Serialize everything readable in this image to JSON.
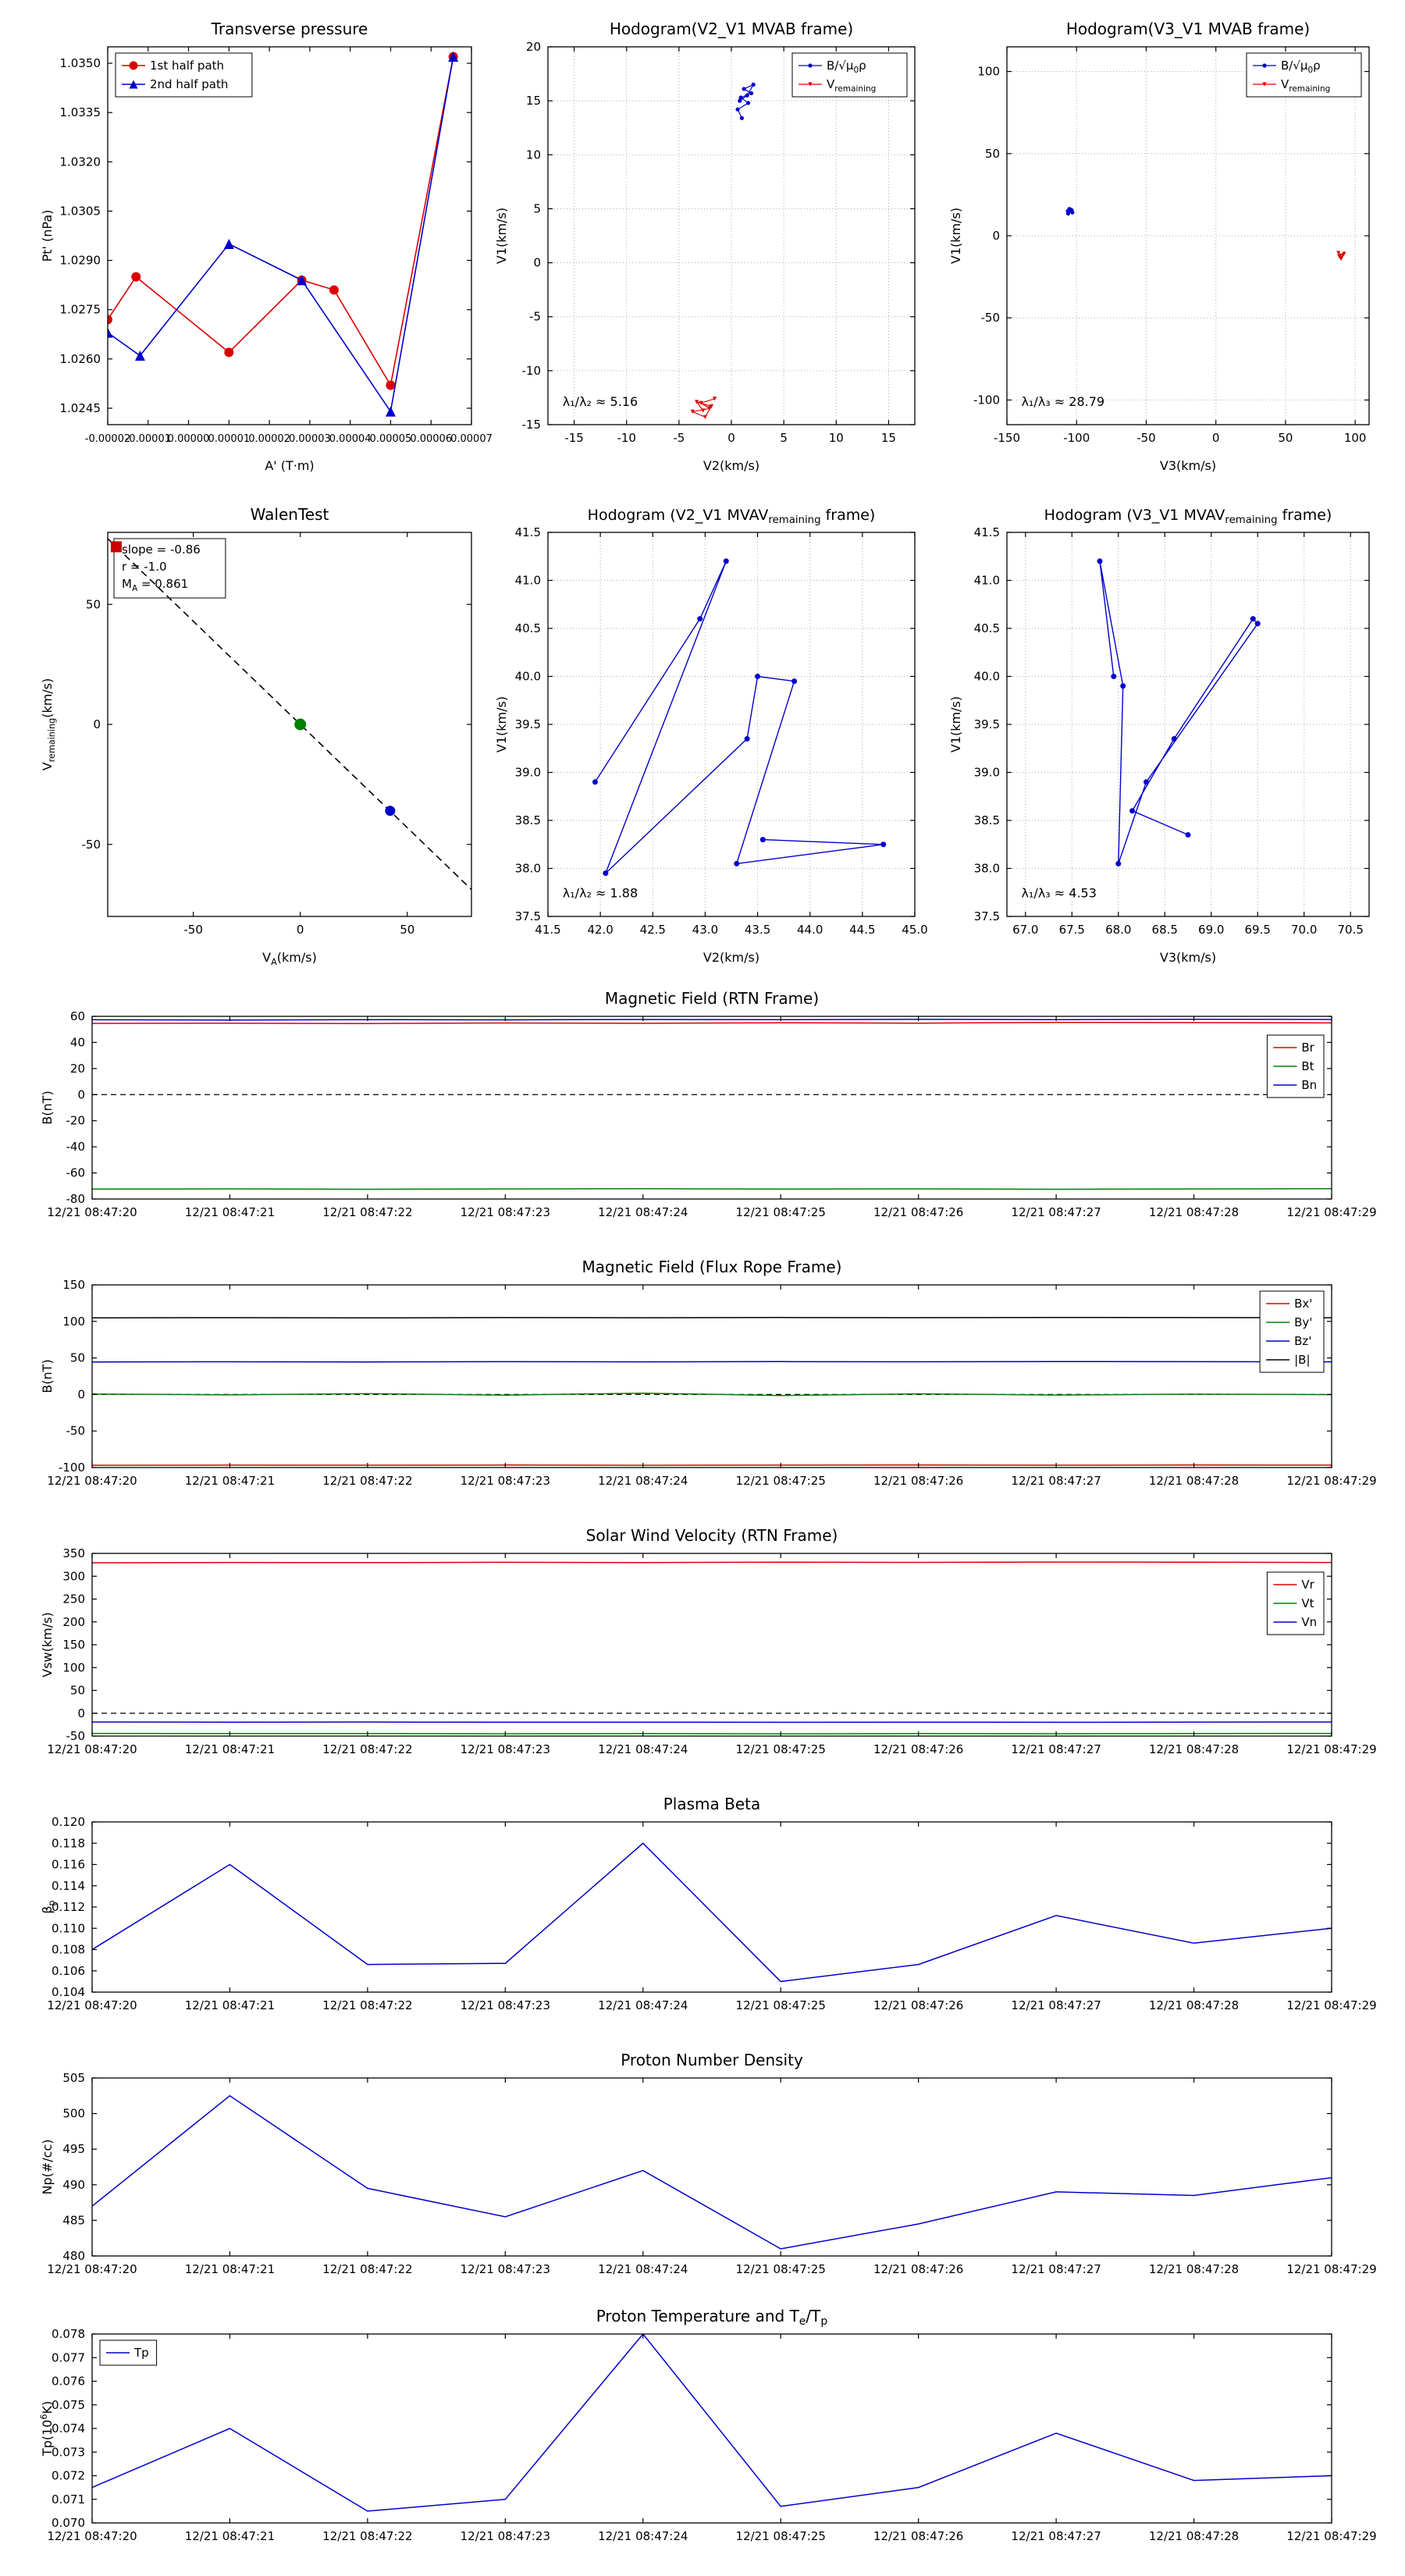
{
  "figure": {
    "background": "#ffffff"
  },
  "time_labels": [
    "12/21 08:47:20",
    "12/21 08:47:21",
    "12/21 08:47:22",
    "12/21 08:47:23",
    "12/21 08:47:24",
    "12/21 08:47:25",
    "12/21 08:47:26",
    "12/21 08:47:27",
    "12/21 08:47:28",
    "12/21 08:47:29"
  ],
  "chart_data": [
    {
      "id": "pt",
      "type": "line",
      "title": "Transverse pressure",
      "xlabel": "A' (T·m)",
      "ylabel": "Pt' (nPa)",
      "xlim": [
        -2e-05,
        7e-05
      ],
      "ylim": [
        1.024,
        1.0355
      ],
      "xtickfs": 13,
      "xticks": {
        "values": [
          -2e-05,
          -1e-05,
          0,
          1e-05,
          2e-05,
          3e-05,
          4e-05,
          5e-05,
          6e-05,
          7e-05
        ],
        "labels": [
          "-0.00002",
          "-0.00001",
          "0.00000",
          "0.00001",
          "0.00002",
          "0.00003",
          "0.00004",
          "0.00005",
          "0.00006",
          "0.00007"
        ]
      },
      "yticks": {
        "values": [
          1.0245,
          1.026,
          1.0275,
          1.029,
          1.0305,
          1.032,
          1.0335,
          1.035
        ],
        "labels": [
          "1.0245",
          "1.0260",
          "1.0275",
          "1.0290",
          "1.0305",
          "1.0320",
          "1.0335",
          "1.0350"
        ]
      },
      "legend": {
        "pos": "upper left"
      },
      "series": [
        {
          "label": "1st half path",
          "color": "#dd0000",
          "marker": "circle",
          "msize": 6,
          "width": 1.6,
          "x": [
            -2e-05,
            -1.3e-05,
            1e-05,
            2.8e-05,
            3.6e-05,
            5e-05,
            6.55e-05
          ],
          "y": [
            1.0272,
            1.0285,
            1.0262,
            1.0284,
            1.0281,
            1.0252,
            1.0352
          ]
        },
        {
          "label": "2nd half path",
          "color": "#0000cc",
          "marker": "triangle",
          "msize": 6.5,
          "width": 1.6,
          "x": [
            -2e-05,
            -1.2e-05,
            1e-05,
            2.8e-05,
            5e-05,
            6.55e-05
          ],
          "y": [
            1.0268,
            1.0261,
            1.0295,
            1.0284,
            1.0244,
            1.0352
          ]
        }
      ]
    },
    {
      "id": "hod1",
      "type": "line",
      "title": "Hodogram(V2_V1 MVAB frame)",
      "xlabel": "V2(km/s)",
      "ylabel": "V1(km/s)",
      "xlim": [
        -17.5,
        17.5
      ],
      "ylim": [
        -15,
        20
      ],
      "grid": true,
      "xticks": {
        "values": [
          -15,
          -10,
          -5,
          0,
          5,
          10,
          15
        ],
        "labels": [
          "-15",
          "-10",
          "-5",
          "0",
          "5",
          "10",
          "15"
        ]
      },
      "yticks": {
        "values": [
          -15,
          -10,
          -5,
          0,
          5,
          10,
          15,
          20
        ],
        "labels": [
          "-15",
          "-10",
          "-5",
          "0",
          "5",
          "10",
          "15",
          "20"
        ]
      },
      "legend": {
        "pos": "upper right"
      },
      "annotations": [
        {
          "text": "λ₁/λ₂ ≈ 5.16",
          "fx": 0.04,
          "fy": 0.05
        }
      ],
      "series": [
        {
          "label": "B/√μ_{0}ρ",
          "color": "#0000cc",
          "marker": "circle",
          "msize": 2.6,
          "width": 1.2,
          "x": [
            1.0,
            0.6,
            1.6,
            0.9,
            1.9,
            1.2,
            2.1,
            1.5,
            0.8
          ],
          "y": [
            13.4,
            14.2,
            14.8,
            15.3,
            15.7,
            16.1,
            16.5,
            15.5,
            15.0
          ]
        },
        {
          "label": "V_{remaining}",
          "color": "#dd0000",
          "marker": "triangle-down",
          "msize": 2.6,
          "width": 1.2,
          "x": [
            -1.6,
            -2.9,
            -2.1,
            -3.7,
            -2.5,
            -1.9,
            -3.3,
            -2.7
          ],
          "y": [
            -12.6,
            -13.0,
            -13.5,
            -13.8,
            -14.3,
            -13.3,
            -12.9,
            -13.7
          ]
        }
      ]
    },
    {
      "id": "hod2",
      "type": "line",
      "title": "Hodogram(V3_V1 MVAB frame)",
      "xlabel": "V3(km/s)",
      "ylabel": "V1(km/s)",
      "xlim": [
        -150,
        110
      ],
      "ylim": [
        -115,
        115
      ],
      "grid": true,
      "xticks": {
        "values": [
          -150,
          -100,
          -50,
          0,
          50,
          100
        ],
        "labels": [
          "-150",
          "-100",
          "-50",
          "0",
          "50",
          "100"
        ]
      },
      "yticks": {
        "values": [
          -100,
          -50,
          0,
          50,
          100
        ],
        "labels": [
          "-100",
          "-50",
          "0",
          "50",
          "100"
        ]
      },
      "legend": {
        "pos": "upper right"
      },
      "annotations": [
        {
          "text": "λ₁/λ₃ ≈ 28.79",
          "fx": 0.04,
          "fy": 0.05
        }
      ],
      "series": [
        {
          "label": "B/√μ_{0}ρ",
          "color": "#0000cc",
          "marker": "circle",
          "msize": 2.6,
          "width": 1.2,
          "x": [
            -106,
            -103.5,
            -105.2,
            -103,
            -106.3,
            -104.2
          ],
          "y": [
            13.5,
            15.5,
            16.3,
            14.2,
            15.0,
            16.0
          ]
        },
        {
          "label": "V_{remaining}",
          "color": "#dd0000",
          "marker": "triangle-down",
          "msize": 2.6,
          "width": 1.2,
          "x": [
            88,
            91,
            89.5,
            92,
            90,
            88.6
          ],
          "y": [
            -10.5,
            -12.0,
            -13.5,
            -11.0,
            -14.0,
            -12.6
          ]
        }
      ]
    },
    {
      "id": "walen",
      "type": "scatter",
      "title": "WalenTest",
      "xlabel": "V_{A}(km/s)",
      "ylabel": "V_{remaining}(km/s)",
      "xlim": [
        -90,
        80
      ],
      "ylim": [
        -80,
        80
      ],
      "xticks": {
        "values": [
          -50,
          0,
          50
        ],
        "labels": [
          "-50",
          "0",
          "50"
        ]
      },
      "yticks": {
        "values": [
          -50,
          0,
          50
        ],
        "labels": [
          "-50",
          "0",
          "50"
        ]
      },
      "textbox": {
        "pos": "upper left",
        "lines": [
          "slope = -0.86",
          "r = -1.0",
          "M_{A} = 0.861"
        ]
      },
      "series": [
        {
          "color": "#000000",
          "dash": true,
          "width": 1.6,
          "x": [
            -90,
            80
          ],
          "y": [
            77.4,
            -68.8
          ]
        },
        {
          "color": "#cc0000",
          "marker": "square",
          "msize": 7,
          "line": false,
          "x": [
            -86
          ],
          "y": [
            74
          ]
        },
        {
          "color": "#008000",
          "marker": "circle",
          "msize": 7.5,
          "line": false,
          "x": [
            0
          ],
          "y": [
            0
          ]
        },
        {
          "color": "#0000cc",
          "marker": "circle",
          "msize": 6.5,
          "line": false,
          "x": [
            42
          ],
          "y": [
            -36
          ]
        }
      ]
    },
    {
      "id": "hod3",
      "type": "line",
      "titlefs": 19,
      "title": "Hodogram (V2_V1 MVAV_{remaining} frame)",
      "xlabel": "V2(km/s)",
      "ylabel": "V1(km/s)",
      "xlim": [
        41.5,
        45.0
      ],
      "ylim": [
        37.5,
        41.5
      ],
      "grid": true,
      "xticks": {
        "values": [
          41.5,
          42.0,
          42.5,
          43.0,
          43.5,
          44.0,
          44.5,
          45.0
        ],
        "labels": [
          "41.5",
          "42.0",
          "42.5",
          "43.0",
          "43.5",
          "44.0",
          "44.5",
          "45.0"
        ]
      },
      "yticks": {
        "values": [
          37.5,
          38.0,
          38.5,
          39.0,
          39.5,
          40.0,
          40.5,
          41.0,
          41.5
        ],
        "labels": [
          "37.5",
          "38.0",
          "38.5",
          "39.0",
          "39.5",
          "40.0",
          "40.5",
          "41.0",
          "41.5"
        ]
      },
      "annotations": [
        {
          "text": "λ₁/λ₂ ≈ 1.88",
          "fx": 0.04,
          "fy": 0.05
        }
      ],
      "series": [
        {
          "color": "#0000cc",
          "marker": "circle",
          "msize": 3.5,
          "width": 1.4,
          "x": [
            41.95,
            42.95,
            43.2,
            42.05,
            43.4,
            43.5,
            43.85,
            43.3,
            44.7,
            43.55
          ],
          "y": [
            38.9,
            40.6,
            41.2,
            37.95,
            39.35,
            40.0,
            39.95,
            38.05,
            38.25,
            38.3
          ]
        }
      ]
    },
    {
      "id": "hod4",
      "type": "line",
      "titlefs": 19,
      "title": "Hodogram (V3_V1 MVAV_{remaining} frame)",
      "xlabel": "V3(km/s)",
      "ylabel": "V1(km/s)",
      "xlim": [
        66.8,
        70.7
      ],
      "ylim": [
        37.5,
        41.5
      ],
      "grid": true,
      "xticks": {
        "values": [
          67.0,
          67.5,
          68.0,
          68.5,
          69.0,
          69.5,
          70.0,
          70.5
        ],
        "labels": [
          "67.0",
          "67.5",
          "68.0",
          "68.5",
          "69.0",
          "69.5",
          "70.0",
          "70.5"
        ]
      },
      "yticks": {
        "values": [
          37.5,
          38.0,
          38.5,
          39.0,
          39.5,
          40.0,
          40.5,
          41.0,
          41.5
        ],
        "labels": [
          "37.5",
          "38.0",
          "38.5",
          "39.0",
          "39.5",
          "40.0",
          "40.5",
          "41.0",
          "41.5"
        ]
      },
      "annotations": [
        {
          "text": "λ₁/λ₃ ≈ 4.53",
          "fx": 0.04,
          "fy": 0.05
        }
      ],
      "series": [
        {
          "color": "#0000cc",
          "marker": "circle",
          "msize": 3.5,
          "width": 1.4,
          "x": [
            67.95,
            67.8,
            68.05,
            68.0,
            68.3,
            69.5,
            69.45,
            68.6,
            68.15,
            68.75
          ],
          "y": [
            40.0,
            41.2,
            39.9,
            38.05,
            38.9,
            40.55,
            40.6,
            39.35,
            38.6,
            38.35
          ]
        }
      ]
    },
    {
      "id": "brtn",
      "type": "line",
      "title": "Magnetic Field (RTN Frame)",
      "ylabel": "B(nT)",
      "categories_ref": "time_labels",
      "ylim": [
        -80,
        60
      ],
      "yticks": {
        "values": [
          -80,
          -60,
          -40,
          -20,
          0,
          20,
          40,
          60
        ],
        "labels": [
          "-80",
          "-60",
          "-40",
          "-20",
          "0",
          "20",
          "40",
          "60"
        ]
      },
      "hlines": [
        {
          "y": 0,
          "dash": true
        }
      ],
      "legend": {
        "pos": "upper right",
        "dy": 16
      },
      "series": [
        {
          "label": "Br",
          "color": "#dd0000",
          "width": 1.5,
          "y": [
            54.6,
            54.8,
            54.5,
            54.9,
            54.7,
            55.1,
            54.8,
            55.4,
            55.2,
            55.0
          ]
        },
        {
          "label": "Bt",
          "color": "#008000",
          "width": 1.5,
          "y": [
            -72.4,
            -72.2,
            -72.5,
            -72.3,
            -72.1,
            -72.4,
            -72.2,
            -72.5,
            -72.3,
            -72.1
          ]
        },
        {
          "label": "Bn",
          "color": "#0000cc",
          "width": 1.5,
          "y": [
            57.4,
            57.2,
            57.5,
            57.3,
            57.6,
            57.4,
            57.7,
            57.5,
            57.8,
            57.6
          ]
        }
      ]
    },
    {
      "id": "bfr",
      "type": "line",
      "title": "Magnetic Field (Flux Rope Frame)",
      "ylabel": "B(nT)",
      "categories_ref": "time_labels",
      "ylim": [
        -100,
        150
      ],
      "yticks": {
        "values": [
          -100,
          -50,
          0,
          50,
          100,
          150
        ],
        "labels": [
          "-100",
          "-50",
          "0",
          "50",
          "100",
          "150"
        ]
      },
      "hlines": [
        {
          "y": 0,
          "dash": true
        }
      ],
      "legend": {
        "pos": "upper right"
      },
      "series": [
        {
          "label": "Bx'",
          "color": "#dd0000",
          "width": 1.5,
          "y": [
            -96.9,
            -96.7,
            -96.8,
            -96.6,
            -96.9,
            -96.7,
            -96.5,
            -96.8,
            -96.6,
            -96.7
          ]
        },
        {
          "label": "By'",
          "color": "#008000",
          "width": 1.5,
          "y": [
            0.6,
            -0.5,
            1.1,
            -0.9,
            1.8,
            -1.4,
            0.9,
            -0.7,
            0.4,
            -0.2
          ]
        },
        {
          "label": "Bz'",
          "color": "#0000cc",
          "width": 1.5,
          "y": [
            44.6,
            44.8,
            44.5,
            44.9,
            44.7,
            45.0,
            44.8,
            45.1,
            44.9,
            44.7
          ]
        },
        {
          "label": "|B|",
          "color": "#000000",
          "width": 1.5,
          "y": [
            104.9,
            105.1,
            104.8,
            105.2,
            105.0,
            105.3,
            105.1,
            105.4,
            105.2,
            105.0
          ]
        }
      ]
    },
    {
      "id": "vsw",
      "type": "line",
      "title": "Solar Wind Velocity (RTN Frame)",
      "ylabel": "Vsw(km/s)",
      "categories_ref": "time_labels",
      "ylim": [
        -50,
        350
      ],
      "yticks": {
        "values": [
          -50,
          0,
          50,
          100,
          150,
          200,
          250,
          300,
          350
        ],
        "labels": [
          "-50",
          "0",
          "50",
          "100",
          "150",
          "200",
          "250",
          "300",
          "350"
        ]
      },
      "hlines": [
        {
          "y": 0,
          "dash": true
        }
      ],
      "legend": {
        "pos": "upper right",
        "dy": 16
      },
      "series": [
        {
          "label": "Vr",
          "color": "#dd0000",
          "width": 1.5,
          "y": [
            329.5,
            330.2,
            329.8,
            330.5,
            330.0,
            330.8,
            330.3,
            331.0,
            330.6,
            330.2
          ]
        },
        {
          "label": "Vt",
          "color": "#008000",
          "width": 1.5,
          "y": [
            -44.2,
            -44.6,
            -44.3,
            -44.8,
            -44.5,
            -45.0,
            -44.6,
            -44.9,
            -44.4,
            -44.2
          ]
        },
        {
          "label": "Vn",
          "color": "#0000cc",
          "width": 1.5,
          "y": [
            -19.2,
            -19.6,
            -19.3,
            -19.8,
            -19.5,
            -20.0,
            -19.6,
            -19.9,
            -19.4,
            -19.2
          ]
        }
      ]
    },
    {
      "id": "beta",
      "type": "line",
      "title": "Plasma Beta",
      "ylabel": "β_{p}",
      "categories_ref": "time_labels",
      "ylim": [
        0.104,
        0.12
      ],
      "yticks": {
        "values": [
          0.104,
          0.106,
          0.108,
          0.11,
          0.112,
          0.114,
          0.116,
          0.118,
          0.12
        ],
        "labels": [
          "0.104",
          "0.106",
          "0.108",
          "0.110",
          "0.112",
          "0.114",
          "0.116",
          "0.118",
          "0.120"
        ]
      },
      "series": [
        {
          "color": "#0000cc",
          "width": 1.5,
          "y": [
            0.108,
            0.116,
            0.1066,
            0.1067,
            0.118,
            0.105,
            0.1066,
            0.1112,
            0.1086,
            0.11
          ]
        }
      ]
    },
    {
      "id": "np",
      "type": "line",
      "title": "Proton Number Density",
      "ylabel": "Np(#/cc)",
      "categories_ref": "time_labels",
      "ylim": [
        480,
        505
      ],
      "yticks": {
        "values": [
          480,
          485,
          490,
          495,
          500,
          505
        ],
        "labels": [
          "480",
          "485",
          "490",
          "495",
          "500",
          "505"
        ]
      },
      "series": [
        {
          "color": "#0000cc",
          "width": 1.5,
          "y": [
            487.0,
            502.5,
            489.5,
            485.5,
            492.0,
            481.0,
            484.5,
            489.0,
            488.5,
            491.0
          ]
        }
      ]
    },
    {
      "id": "tp",
      "type": "line",
      "title": "Proton Temperature and T_{e}/T_{p}",
      "ylabel": "Tp(10^{6}K)",
      "categories_ref": "time_labels",
      "ylim": [
        0.07,
        0.078
      ],
      "yticks": {
        "values": [
          0.07,
          0.071,
          0.072,
          0.073,
          0.074,
          0.075,
          0.076,
          0.077,
          0.078
        ],
        "labels": [
          "0.070",
          "0.071",
          "0.072",
          "0.073",
          "0.074",
          "0.075",
          "0.076",
          "0.077",
          "0.078"
        ]
      },
      "legend": {
        "pos": "upper left"
      },
      "series": [
        {
          "label": "Tp",
          "color": "#0000cc",
          "width": 1.5,
          "y": [
            0.0715,
            0.074,
            0.0705,
            0.071,
            0.078,
            0.0707,
            0.0715,
            0.0738,
            0.0718,
            0.072
          ]
        }
      ]
    }
  ]
}
